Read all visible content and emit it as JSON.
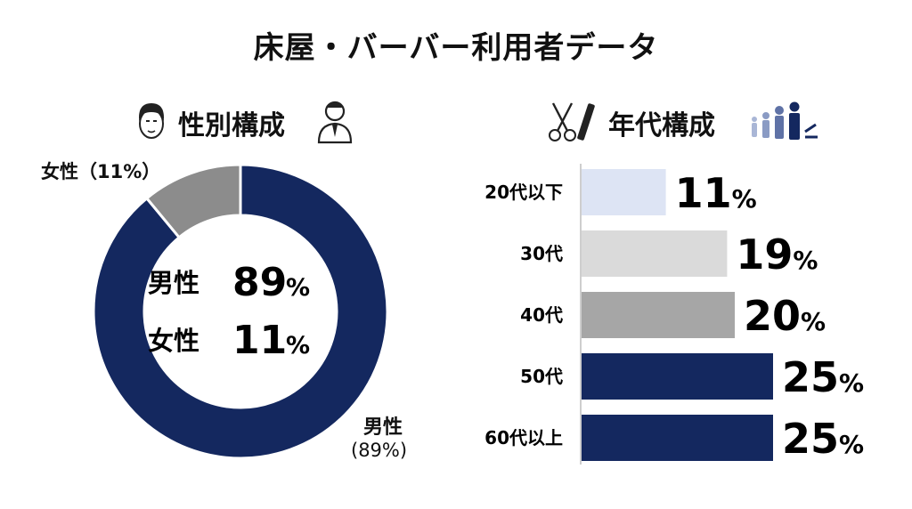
{
  "title": "床屋・バーバー利用者データ",
  "gender_section": {
    "title": "性別構成",
    "center_lines": [
      {
        "label": "男性",
        "value": "89",
        "unit": "%"
      },
      {
        "label": "女性",
        "value": "11",
        "unit": "%"
      }
    ],
    "outer_labels": {
      "female": "女性（11%）",
      "male_name": "男性",
      "male_pct": "(89%)"
    },
    "icons": [
      "man-face-icon",
      "businessman-icon"
    ]
  },
  "age_section": {
    "title": "年代構成",
    "icons": [
      "scissors-comb-icon",
      "family-icon"
    ]
  },
  "colors": {
    "navy": "#14285f",
    "gray": "#8c8c8c",
    "light_blue": "#dde4f4",
    "light_gray": "#dadada",
    "mid_gray": "#a6a6a6"
  },
  "chart_data": [
    {
      "type": "pie",
      "categories": [
        "男性",
        "女性"
      ],
      "values": [
        89,
        11
      ],
      "colors": [
        "#14285f",
        "#8c8c8c"
      ],
      "donut": true
    },
    {
      "type": "bar",
      "orientation": "horizontal",
      "categories": [
        "20代以下",
        "30代",
        "40代",
        "50代",
        "60代以上"
      ],
      "values": [
        11,
        19,
        20,
        25,
        25
      ],
      "value_labels": [
        "11%",
        "19%",
        "20%",
        "25%",
        "25%"
      ],
      "colors": [
        "#dde4f4",
        "#dadada",
        "#a6a6a6",
        "#14285f",
        "#14285f"
      ],
      "xlim": [
        0,
        25
      ]
    }
  ]
}
